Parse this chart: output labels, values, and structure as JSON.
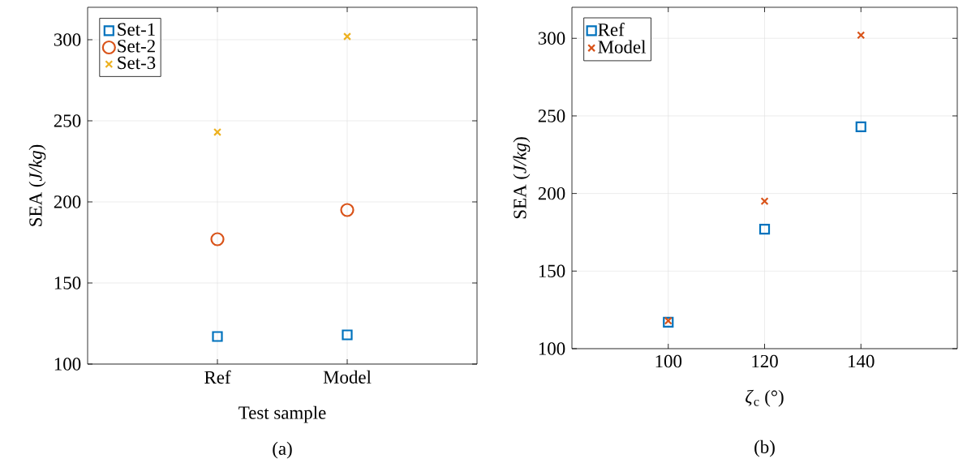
{
  "chart_data": [
    {
      "type": "scatter",
      "xlabel": "Test sample",
      "ylabel": "SEA (*J/kg*)",
      "categories": [
        "Ref",
        "Model"
      ],
      "ylim": [
        100,
        320
      ],
      "yticks": [
        100,
        150,
        200,
        250,
        300
      ],
      "grid": true,
      "legend": "top left",
      "annotations": [
        "(a)"
      ],
      "series": [
        {
          "name": "Set-1",
          "color": "#0072bd",
          "marker": "square",
          "values": [
            117,
            118
          ]
        },
        {
          "name": "Set-2",
          "color": "#d95319",
          "marker": "circle",
          "values": [
            177,
            195
          ]
        },
        {
          "name": "Set-3",
          "color": "#edb120",
          "marker": "cross",
          "values": [
            243,
            302
          ]
        }
      ]
    },
    {
      "type": "scatter",
      "xlabel": "*ζ*$_{c}$ (°)",
      "ylabel": "SEA (*J/kg*)",
      "x": [
        100,
        120,
        140
      ],
      "xlim": [
        80,
        160
      ],
      "xticks": [
        100,
        120,
        140
      ],
      "ylim": [
        100,
        320
      ],
      "yticks": [
        100,
        150,
        200,
        250,
        300
      ],
      "grid": true,
      "legend": "top left",
      "annotations": [
        "(b)"
      ],
      "series": [
        {
          "name": "Ref",
          "color": "#0072bd",
          "marker": "square",
          "values": [
            117,
            177,
            243
          ]
        },
        {
          "name": "Model",
          "color": "#d95319",
          "marker": "cross",
          "values": [
            118,
            195,
            302
          ]
        }
      ]
    }
  ]
}
